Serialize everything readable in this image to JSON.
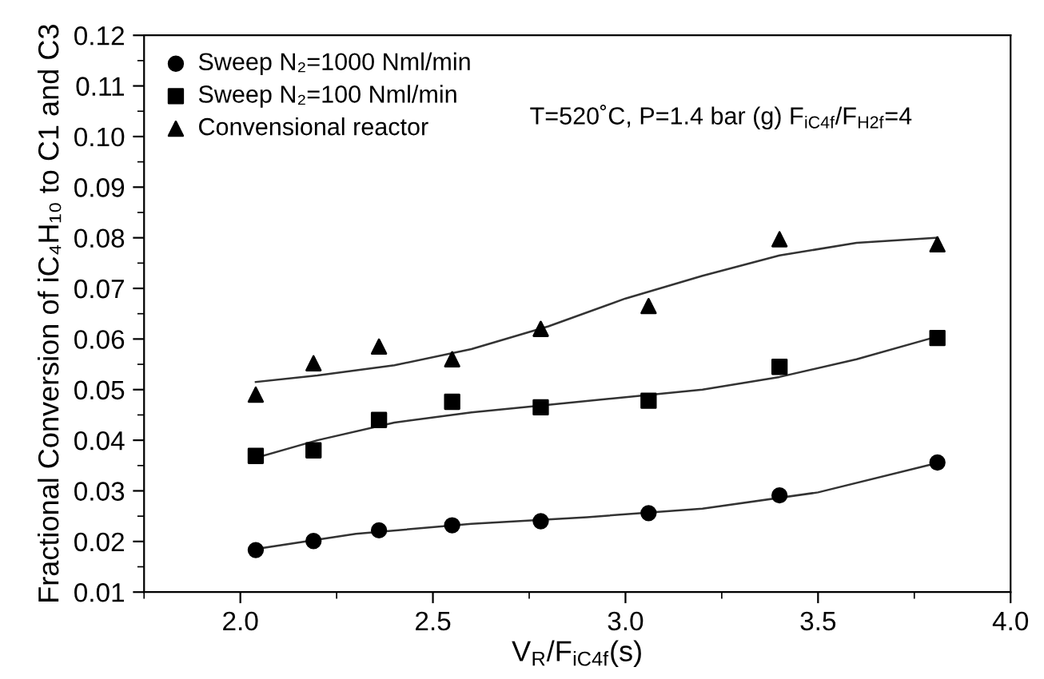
{
  "chart_data": {
    "type": "scatter",
    "xlabel": "V$_{R}$/F$_{iC4f}$(s)",
    "ylabel": "Fractional Conversion of iC₄H₁₀ to C1 and C3",
    "annotations": [
      "T=520˚C, P=1.4 bar (g) F$_{iC4f}$/F$_{H2f}$=4"
    ],
    "xlim": [
      1.75,
      4.0
    ],
    "xticks": [
      {
        "value": 2,
        "label": "2.0"
      },
      2.5,
      {
        "value": 3,
        "label": "3.0"
      },
      3.5,
      {
        "value": 4,
        "label": "4.0"
      }
    ],
    "ylim": [
      0.01,
      0.12
    ],
    "yticks": [
      0.01,
      0.02,
      0.03,
      0.04,
      0.05,
      0.06,
      0.07,
      0.08,
      0.09,
      {
        "value": 0.1,
        "label": "0.10"
      },
      0.11,
      0.12
    ],
    "grid": false,
    "legend": "top left",
    "series": [
      {
        "name": "Sweep N₂=1000 Nml/min",
        "marker": "circle",
        "color": "#000000",
        "x": [
          2.04,
          2.19,
          2.36,
          2.55,
          2.78,
          3.06,
          3.4,
          3.81
        ],
        "values": [
          0.0183,
          0.0201,
          0.0222,
          0.0232,
          0.024,
          0.0256,
          0.0291,
          0.0356
        ]
      },
      {
        "name": "Sweep N₂=100 Nml/min",
        "marker": "square",
        "color": "#000000",
        "x": [
          2.04,
          2.19,
          2.36,
          2.55,
          2.78,
          3.06,
          3.4,
          3.81
        ],
        "values": [
          0.0369,
          0.038,
          0.044,
          0.0476,
          0.0465,
          0.0478,
          0.0545,
          0.0602
        ]
      },
      {
        "name": "Convensional reactor",
        "marker": "triangle",
        "color": "#000000",
        "x": [
          2.04,
          2.19,
          2.36,
          2.55,
          2.78,
          3.06,
          3.4,
          3.81
        ],
        "values": [
          0.049,
          0.0552,
          0.0585,
          0.056,
          0.062,
          0.0665,
          0.0797,
          0.0787
        ]
      },
      {
        "type": "line",
        "color": "#333333",
        "marker": "none",
        "x": [
          2.04,
          2.3,
          2.6,
          2.9,
          3.2,
          3.5,
          3.81
        ],
        "values": [
          0.0185,
          0.0215,
          0.0235,
          0.0248,
          0.0265,
          0.0297,
          0.0355
        ]
      },
      {
        "type": "line",
        "color": "#333333",
        "marker": "none",
        "x": [
          2.04,
          2.2,
          2.4,
          2.6,
          2.8,
          3.0,
          3.2,
          3.4,
          3.6,
          3.81
        ],
        "values": [
          0.0365,
          0.04,
          0.0435,
          0.0455,
          0.047,
          0.0485,
          0.05,
          0.0525,
          0.056,
          0.0605
        ]
      },
      {
        "type": "line",
        "color": "#333333",
        "marker": "none",
        "x": [
          2.04,
          2.2,
          2.4,
          2.6,
          2.8,
          3.0,
          3.2,
          3.4,
          3.6,
          3.81
        ],
        "values": [
          0.0515,
          0.0528,
          0.0548,
          0.058,
          0.0625,
          0.068,
          0.0725,
          0.0765,
          0.079,
          0.08
        ]
      }
    ]
  }
}
